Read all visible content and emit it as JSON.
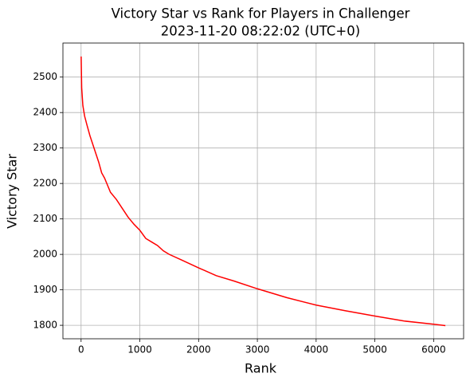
{
  "chart_data": {
    "type": "line",
    "title": "Victory Star vs Rank for Players in Challenger",
    "subtitle": "2023-11-20 08:22:02 (UTC+0)",
    "x_label": "Rank",
    "y_label": "Victory Star",
    "series": [
      {
        "name": "Victory Star",
        "color": "#ff0000",
        "x": [
          1,
          10,
          30,
          60,
          100,
          150,
          200,
          250,
          300,
          350,
          400,
          450,
          500,
          600,
          700,
          800,
          900,
          1000,
          1100,
          1200,
          1300,
          1400,
          1500,
          1700,
          2000,
          2300,
          2600,
          3000,
          3500,
          4000,
          4500,
          5000,
          5500,
          6000,
          6200
        ],
        "values": [
          2558,
          2470,
          2420,
          2390,
          2365,
          2335,
          2310,
          2285,
          2260,
          2230,
          2215,
          2195,
          2175,
          2155,
          2130,
          2105,
          2085,
          2068,
          2045,
          2035,
          2025,
          2010,
          2000,
          1985,
          1962,
          1940,
          1925,
          1903,
          1878,
          1857,
          1841,
          1826,
          1812,
          1803,
          1799
        ]
      }
    ],
    "xlim": [
      -309,
      6510
    ],
    "ylim": [
      1762,
      2596
    ],
    "xticks": [
      0,
      1000,
      2000,
      3000,
      4000,
      5000,
      6000
    ],
    "yticks": [
      1800,
      1900,
      2000,
      2100,
      2200,
      2300,
      2400,
      2500
    ],
    "grid": true
  }
}
